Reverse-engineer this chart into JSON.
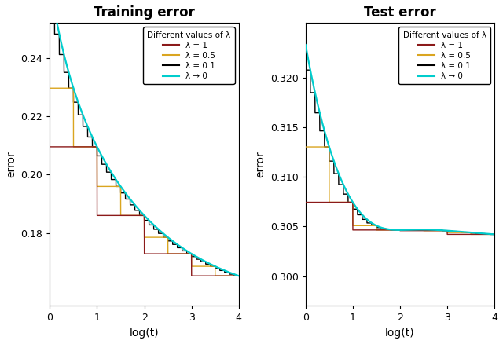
{
  "title_left": "Training error",
  "title_right": "Test error",
  "xlabel": "log(t)",
  "ylabel": "error",
  "legend_title": "Different values of λ",
  "legend_entries": [
    "λ = 1",
    "λ = 0.5",
    "λ = 0.1",
    "λ → 0"
  ],
  "colors": [
    "#8b1a1a",
    "#daa520",
    "#000000",
    "#00cdcd"
  ],
  "xlim": [
    0,
    4
  ],
  "train_ylim": [
    0.155,
    0.252
  ],
  "test_ylim": [
    0.297,
    0.3255
  ],
  "train_yticks": [
    0.18,
    0.2,
    0.22,
    0.24
  ],
  "test_yticks": [
    0.3,
    0.305,
    0.31,
    0.315,
    0.32
  ],
  "xticks": [
    0,
    1,
    2,
    3,
    4
  ],
  "background": "#ffffff"
}
